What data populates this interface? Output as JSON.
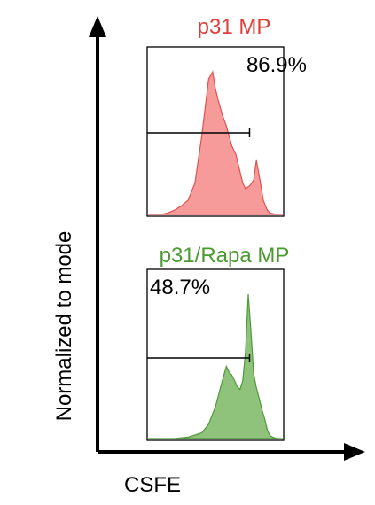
{
  "colors": {
    "axis": "#000000",
    "red_fill": "#f79a9a",
    "red_stroke": "#e05050",
    "red_title": "#e0403a",
    "green_fill": "#8fc27a",
    "green_stroke": "#4f9a3a",
    "green_title": "#4a9a30",
    "gate": "#000000",
    "box": "#000000"
  },
  "chart_data": [
    {
      "type": "area",
      "title": "p31 MP",
      "xlabel": "CSFE",
      "ylabel": "Normalized to mode",
      "gate_label": "86.9%",
      "gate_range": [
        0.0,
        0.75
      ],
      "x": [
        0.0,
        0.05,
        0.1,
        0.15,
        0.2,
        0.25,
        0.3,
        0.35,
        0.4,
        0.45,
        0.48,
        0.5,
        0.52,
        0.55,
        0.58,
        0.6,
        0.62,
        0.65,
        0.68,
        0.7,
        0.72,
        0.75,
        0.78,
        0.8,
        0.83,
        0.85,
        0.88,
        0.9,
        0.95,
        1.0
      ],
      "y": [
        0.0,
        0.0,
        0.0,
        0.01,
        0.03,
        0.06,
        0.1,
        0.22,
        0.55,
        0.95,
        1.0,
        0.88,
        0.8,
        0.7,
        0.62,
        0.55,
        0.48,
        0.42,
        0.3,
        0.22,
        0.18,
        0.2,
        0.24,
        0.38,
        0.22,
        0.1,
        0.03,
        0.01,
        0.0,
        0.0
      ]
    },
    {
      "type": "area",
      "title": "p31/Rapa MP",
      "xlabel": "CSFE",
      "ylabel": "Normalized to mode",
      "gate_label": "48.7%",
      "gate_range": [
        0.0,
        0.75
      ],
      "x": [
        0.0,
        0.1,
        0.2,
        0.3,
        0.4,
        0.45,
        0.5,
        0.55,
        0.58,
        0.6,
        0.62,
        0.64,
        0.66,
        0.68,
        0.7,
        0.72,
        0.74,
        0.76,
        0.78,
        0.8,
        0.82,
        0.84,
        0.86,
        0.88,
        0.9,
        0.92,
        0.95,
        1.0
      ],
      "y": [
        0.0,
        0.0,
        0.0,
        0.01,
        0.04,
        0.1,
        0.22,
        0.4,
        0.5,
        0.46,
        0.44,
        0.4,
        0.36,
        0.34,
        0.4,
        0.6,
        1.0,
        0.75,
        0.45,
        0.35,
        0.28,
        0.2,
        0.14,
        0.06,
        0.02,
        0.01,
        0.0,
        0.0
      ]
    }
  ],
  "axis": {
    "xlabel": "CSFE",
    "ylabel": "Normalized to mode"
  }
}
